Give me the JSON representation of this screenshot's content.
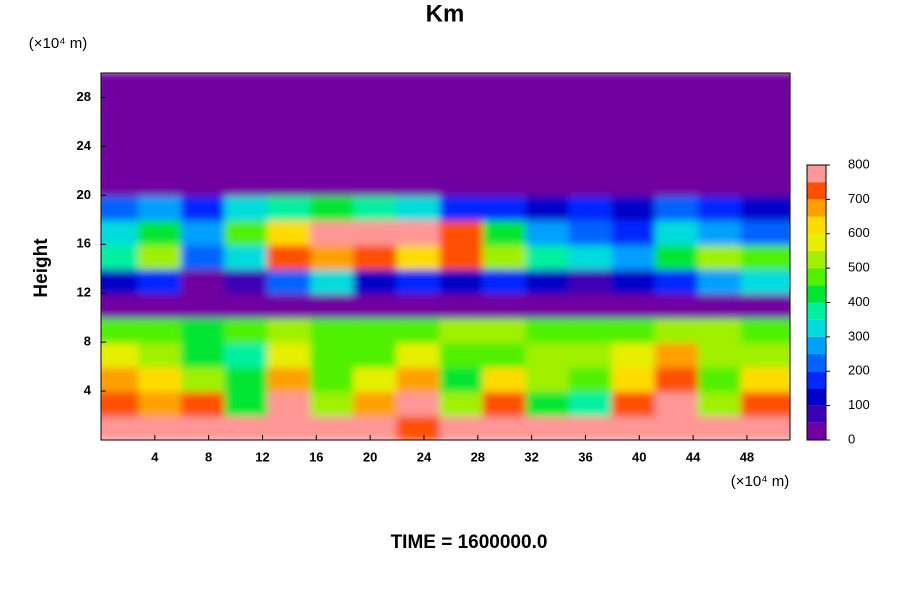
{
  "chart_data": {
    "type": "heatmap",
    "title": "Km",
    "ylabel": "Height",
    "yunit": "(×10⁴ m)",
    "xunit": "(×10⁴ m)",
    "footer": "TIME = 1600000.0",
    "xlim": [
      0,
      51.2
    ],
    "ylim": [
      0,
      30
    ],
    "xticks": [
      4,
      8,
      12,
      16,
      20,
      24,
      28,
      32,
      36,
      40,
      44,
      48
    ],
    "yticks": [
      4,
      8,
      12,
      16,
      20,
      24,
      28
    ],
    "x_edges": [
      0,
      3.2,
      6.4,
      9.6,
      12.8,
      16,
      19.2,
      22.4,
      25.6,
      28.8,
      32,
      35.2,
      38.4,
      41.6,
      44.8,
      48,
      51.2
    ],
    "y_edges": [
      0,
      2,
      4,
      6,
      8,
      10,
      12,
      14,
      16,
      18,
      20,
      30
    ],
    "z": [
      [
        800,
        800,
        800,
        750,
        800,
        800,
        800,
        700,
        800,
        800,
        750,
        800,
        800,
        800,
        750,
        800
      ],
      [
        700,
        650,
        700,
        400,
        750,
        500,
        650,
        750,
        500,
        700,
        400,
        350,
        700,
        800,
        500,
        700
      ],
      [
        650,
        600,
        500,
        400,
        650,
        450,
        550,
        650,
        400,
        600,
        500,
        450,
        600,
        700,
        450,
        600
      ],
      [
        550,
        500,
        400,
        350,
        550,
        450,
        450,
        550,
        450,
        450,
        500,
        500,
        550,
        650,
        500,
        500
      ],
      [
        450,
        450,
        400,
        450,
        500,
        450,
        450,
        450,
        500,
        500,
        450,
        450,
        450,
        500,
        500,
        450
      ],
      [
        0,
        0,
        0,
        0,
        0,
        0,
        0,
        0,
        0,
        0,
        0,
        0,
        0,
        0,
        0,
        0
      ],
      [
        100,
        150,
        0,
        50,
        200,
        300,
        100,
        150,
        100,
        150,
        100,
        50,
        100,
        150,
        250,
        300
      ],
      [
        350,
        500,
        200,
        300,
        700,
        650,
        700,
        600,
        700,
        500,
        350,
        300,
        250,
        400,
        500,
        450
      ],
      [
        300,
        400,
        250,
        450,
        600,
        800,
        800,
        800,
        700,
        400,
        250,
        200,
        150,
        300,
        250,
        200
      ],
      [
        200,
        250,
        150,
        300,
        350,
        400,
        350,
        300,
        150,
        150,
        100,
        150,
        100,
        200,
        150,
        100
      ],
      [
        0,
        0,
        0,
        0,
        0,
        0,
        0,
        0,
        0,
        0,
        0,
        0,
        0,
        0,
        0,
        0
      ]
    ],
    "clim": [
      0,
      800
    ],
    "cticks": [
      0,
      100,
      200,
      300,
      400,
      500,
      600,
      700,
      800
    ],
    "levels": [
      0,
      50,
      100,
      150,
      200,
      250,
      300,
      350,
      400,
      450,
      500,
      550,
      600,
      650,
      700,
      750
    ],
    "colors": [
      "#7000a0",
      "#3c00b4",
      "#0000c8",
      "#0028ff",
      "#0064ff",
      "#00a0ff",
      "#00dcdc",
      "#00f0a0",
      "#00e632",
      "#50f000",
      "#a0f000",
      "#e6f000",
      "#ffdc00",
      "#ffa000",
      "#ff5000",
      "#ff9696"
    ]
  }
}
